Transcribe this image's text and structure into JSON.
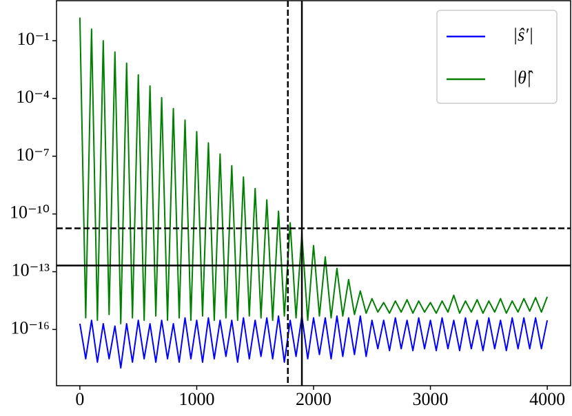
{
  "chart_data": {
    "type": "line",
    "yscale": "log",
    "x": [
      0,
      50,
      100,
      150,
      200,
      250,
      300,
      350,
      400,
      450,
      500,
      550,
      600,
      650,
      700,
      750,
      800,
      850,
      900,
      950,
      1000,
      1050,
      1100,
      1150,
      1200,
      1250,
      1300,
      1350,
      1400,
      1450,
      1500,
      1550,
      1600,
      1650,
      1700,
      1750,
      1800,
      1850,
      1900,
      1950,
      2000,
      2050,
      2100,
      2150,
      2200,
      2250,
      2300,
      2350,
      2400,
      2450,
      2500,
      2550,
      2600,
      2650,
      2700,
      2750,
      2800,
      2850,
      2900,
      2950,
      3000,
      3050,
      3100,
      3150,
      3200,
      3250,
      3300,
      3350,
      3400,
      3450,
      3500,
      3550,
      3600,
      3650,
      3700,
      3750,
      3800,
      3850,
      3900,
      3950,
      4000
    ],
    "series": [
      {
        "name": "|ŝ′|",
        "color": "#0000ff",
        "values": [
          2e-16,
          3e-18,
          3e-16,
          2e-18,
          2e-16,
          3e-18,
          1.5e-16,
          1e-18,
          2e-16,
          2e-18,
          3e-16,
          3e-18,
          2e-16,
          2e-18,
          3e-16,
          3e-18,
          2e-16,
          2e-18,
          4e-16,
          3e-18,
          3e-16,
          2e-18,
          4e-16,
          3e-18,
          3e-16,
          4e-18,
          3e-16,
          2e-18,
          4e-16,
          3e-18,
          3e-16,
          4e-18,
          4e-16,
          3e-18,
          5e-16,
          2e-18,
          3e-16,
          4e-18,
          5e-16,
          3e-18,
          4e-16,
          5e-18,
          4e-16,
          3e-18,
          5e-16,
          4e-18,
          4e-16,
          5e-18,
          5e-16,
          4e-18,
          3e-16,
          1e-17,
          3e-16,
          8e-18,
          4e-16,
          1e-17,
          3e-16,
          8e-18,
          4e-16,
          1e-17,
          3e-16,
          8e-18,
          4e-16,
          1e-17,
          3e-16,
          8e-18,
          4e-16,
          1e-17,
          3e-16,
          8e-18,
          4e-16,
          1e-17,
          3e-16,
          8e-18,
          4e-16,
          1e-17,
          4e-16,
          1e-17,
          4e-16,
          1e-17,
          3e-16
        ]
      },
      {
        "name": "|θ̂|",
        "color": "#008000",
        "values": [
          1.6,
          4e-16,
          0.4,
          3e-16,
          0.1,
          6e-16,
          0.026,
          2e-16,
          0.0068,
          4e-16,
          0.0017,
          3e-16,
          0.00045,
          5e-16,
          0.00011,
          3e-16,
          3e-05,
          4e-16,
          7.5e-06,
          3e-16,
          1.9e-06,
          5e-16,
          4.9e-07,
          3e-16,
          1.3e-07,
          4e-16,
          3.2e-08,
          3e-16,
          8.3e-09,
          5e-16,
          2.1e-09,
          4e-16,
          5.4e-10,
          3e-16,
          1.4e-10,
          5e-16,
          3.5e-11,
          4e-16,
          9.1e-12,
          3e-16,
          2.3e-12,
          5e-16,
          5.9e-13,
          4e-16,
          1.5e-13,
          5e-16,
          3.9e-14,
          6e-16,
          1e-14,
          7e-16,
          4e-15,
          8e-16,
          2.5e-15,
          7e-16,
          3e-15,
          8e-16,
          3.5e-15,
          7e-16,
          3e-15,
          8e-16,
          2.5e-15,
          7e-16,
          3e-15,
          8e-16,
          6e-15,
          7e-16,
          3e-15,
          8e-16,
          3.5e-15,
          7e-16,
          3e-15,
          8e-16,
          4e-15,
          7e-16,
          3e-15,
          8e-16,
          4e-15,
          9e-16,
          4.5e-15,
          8e-16,
          5e-15
        ]
      }
    ],
    "xlim": [
      -200,
      4200
    ],
    "xticks": [
      0,
      1000,
      2000,
      3000,
      4000
    ],
    "ylim": [
      1.2e-19,
      12
    ],
    "yticks": [
      {
        "value": 0.1,
        "label": "10⁻¹"
      },
      {
        "value": 0.0001,
        "label": "10⁻⁴"
      },
      {
        "value": 1e-07,
        "label": "10⁻⁷"
      },
      {
        "value": 1e-10,
        "label": "10⁻¹⁰"
      },
      {
        "value": 1e-13,
        "label": "10⁻¹³"
      },
      {
        "value": 1e-16,
        "label": "10⁻¹⁶"
      }
    ],
    "hlines": [
      {
        "value": 1.8e-11,
        "style": "dashed"
      },
      {
        "value": 2.1e-13,
        "style": "solid"
      }
    ],
    "vlines": [
      {
        "value": 1780,
        "style": "dashed"
      },
      {
        "value": 1900,
        "style": "solid"
      }
    ],
    "legend": "upper right"
  }
}
